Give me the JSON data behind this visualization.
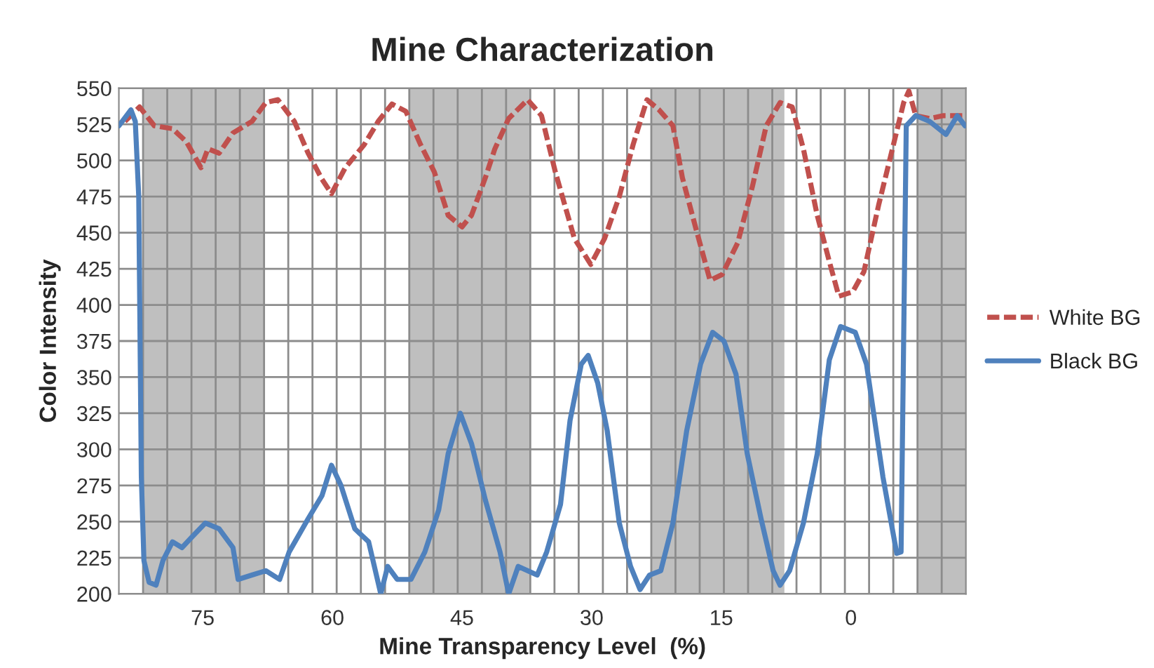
{
  "chart_data": {
    "type": "line",
    "title": "Mine Characterization",
    "xlabel": "Mine Transparency Level  (%)",
    "ylabel": "Color Intensity",
    "xlim": [
      84.7,
      -13.3
    ],
    "ylim": [
      200,
      550
    ],
    "xticks": [
      75,
      60,
      45,
      30,
      15,
      0,
      {
        "value": 81.9,
        "label": null
      },
      {
        "value": 79.1,
        "label": null
      },
      {
        "value": 76.3,
        "label": null
      },
      {
        "value": 73.5,
        "label": null
      },
      {
        "value": 70.7,
        "label": null
      },
      {
        "value": 67.9,
        "label": null
      },
      {
        "value": 65.1,
        "label": null
      },
      {
        "value": 62.3,
        "label": null
      },
      {
        "value": 59.5,
        "label": null
      },
      {
        "value": 56.7,
        "label": null
      },
      {
        "value": 53.9,
        "label": null
      },
      {
        "value": 51.1,
        "label": null
      },
      {
        "value": 48.3,
        "label": null
      },
      {
        "value": 45.5,
        "label": null
      },
      {
        "value": 42.7,
        "label": null
      },
      {
        "value": 39.9,
        "label": null
      },
      {
        "value": 37.1,
        "label": null
      },
      {
        "value": 34.3,
        "label": null
      },
      {
        "value": 31.5,
        "label": null
      },
      {
        "value": 28.7,
        "label": null
      },
      {
        "value": 25.9,
        "label": null
      },
      {
        "value": 23.1,
        "label": null
      },
      {
        "value": 20.3,
        "label": null
      },
      {
        "value": 17.5,
        "label": null
      },
      {
        "value": 14.7,
        "label": null
      },
      {
        "value": 11.9,
        "label": null
      },
      {
        "value": 9.1,
        "label": null
      },
      {
        "value": 6.3,
        "label": null
      },
      {
        "value": 3.5,
        "label": null
      },
      {
        "value": 0.7,
        "label": null
      },
      {
        "value": -2.1,
        "label": null
      },
      {
        "value": -4.9,
        "label": null
      },
      {
        "value": -7.7,
        "label": null
      },
      {
        "value": -10.5,
        "label": null
      }
    ],
    "yticks": [
      200,
      225,
      250,
      275,
      300,
      325,
      350,
      375,
      400,
      425,
      450,
      475,
      500,
      525,
      550
    ],
    "grid": true,
    "legend": "right",
    "bands": [
      {
        "axis": "x",
        "from": 81.9,
        "to": 67.9,
        "color": "#bfbfbf"
      },
      {
        "axis": "x",
        "from": 51.1,
        "to": 37.1,
        "color": "#bfbfbf"
      },
      {
        "axis": "x",
        "from": 23.1,
        "to": 7.7,
        "color": "#bfbfbf"
      },
      {
        "axis": "x",
        "from": -7.7,
        "to": -13.3,
        "color": "#bfbfbf"
      }
    ],
    "series": [
      {
        "name": "White BG",
        "color": "#c0504d",
        "line_style": "dashed",
        "x": [
          84.0,
          82.3,
          80.6,
          78.5,
          76.9,
          75.2,
          74.4,
          73.1,
          71.5,
          69.3,
          67.7,
          66.3,
          64.4,
          62.8,
          61.2,
          60.1,
          58.5,
          56.3,
          54.7,
          53.1,
          51.5,
          49.8,
          48.2,
          46.6,
          45.0,
          43.9,
          42.3,
          41.2,
          39.6,
          37.4,
          35.8,
          34.2,
          32.0,
          30.1,
          28.5,
          26.8,
          25.2,
          23.6,
          22.2,
          20.6,
          19.5,
          17.9,
          16.3,
          14.9,
          13.1,
          11.4,
          9.8,
          8.2,
          6.8,
          5.5,
          3.9,
          2.5,
          1.4,
          -0.2,
          -1.5,
          -3.2,
          -4.8,
          -6.1,
          -6.7,
          -7.5,
          -9.1,
          -10.7,
          -12.9
        ],
        "values": [
          527,
          537,
          524,
          522,
          513,
          495,
          508,
          505,
          519,
          527,
          540,
          542,
          527,
          505,
          487,
          477,
          495,
          511,
          527,
          539,
          534,
          511,
          492,
          462,
          454,
          462,
          488,
          508,
          529,
          542,
          531,
          492,
          446,
          428,
          446,
          475,
          511,
          542,
          535,
          524,
          488,
          452,
          417,
          421,
          443,
          482,
          524,
          540,
          537,
          508,
          462,
          430,
          406,
          409,
          423,
          469,
          508,
          540,
          548,
          531,
          529,
          531,
          531
        ]
      },
      {
        "name": "Black BG",
        "color": "#4f81bd",
        "line_style": "solid",
        "x": [
          84.7,
          83.3,
          82.8,
          82.4,
          82.1,
          81.8,
          81.2,
          80.4,
          79.6,
          78.5,
          77.4,
          76.3,
          74.7,
          73.1,
          71.5,
          70.9,
          69.3,
          67.7,
          66.1,
          65.0,
          62.8,
          61.2,
          60.1,
          59.0,
          57.4,
          55.8,
          54.4,
          53.6,
          52.5,
          50.9,
          49.3,
          47.7,
          46.6,
          45.2,
          43.9,
          42.3,
          40.6,
          39.6,
          38.5,
          36.3,
          35.2,
          33.6,
          32.5,
          31.2,
          30.4,
          29.3,
          28.2,
          26.8,
          25.5,
          24.4,
          23.3,
          22.0,
          20.6,
          19.0,
          17.4,
          16.0,
          14.7,
          13.3,
          12.0,
          10.4,
          9.0,
          8.2,
          7.1,
          5.5,
          3.9,
          2.5,
          1.2,
          -0.5,
          -1.8,
          -3.7,
          -5.3,
          -5.8,
          -6.4,
          -7.5,
          -9.1,
          -11.0,
          -12.3,
          -13.2
        ],
        "values": [
          524,
          535,
          527,
          475,
          281,
          223,
          208,
          206,
          223,
          236,
          232,
          239,
          249,
          245,
          232,
          210,
          213,
          216,
          210,
          229,
          252,
          268,
          289,
          275,
          245,
          236,
          200,
          219,
          210,
          210,
          229,
          258,
          297,
          325,
          304,
          265,
          229,
          200,
          219,
          213,
          229,
          262,
          320,
          359,
          365,
          346,
          313,
          249,
          219,
          203,
          213,
          216,
          249,
          313,
          359,
          381,
          375,
          352,
          297,
          252,
          216,
          206,
          216,
          249,
          297,
          362,
          385,
          381,
          359,
          281,
          228,
          229,
          524,
          531,
          527,
          518,
          531,
          524
        ]
      }
    ]
  }
}
